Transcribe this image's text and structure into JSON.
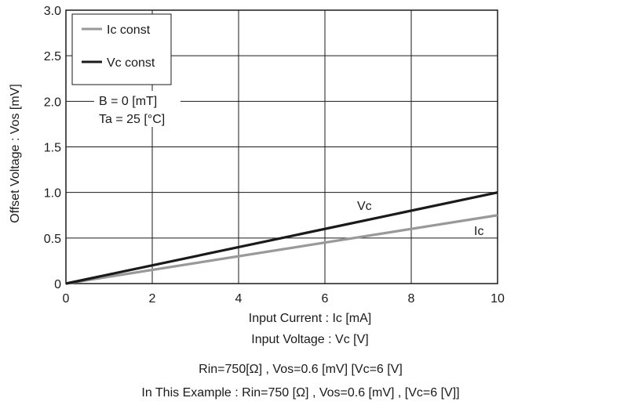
{
  "chart_data": {
    "type": "line",
    "xlabel_line1": "Input Current : Ic [mA]",
    "xlabel_line2": "Input Voltage : Vc [V]",
    "ylabel": "Offset Voltage : Vos [mV]",
    "xlim": [
      0,
      10
    ],
    "ylim": [
      0,
      3.0
    ],
    "xticks": [
      "0",
      "2",
      "4",
      "6",
      "8",
      "10"
    ],
    "yticks": [
      "0",
      "0.5",
      "1.0",
      "1.5",
      "2.0",
      "2.5",
      "3.0"
    ],
    "grid": true,
    "series": [
      {
        "name": "Ic const",
        "color": "#999999",
        "x": [
          0,
          10
        ],
        "y": [
          0,
          0.75
        ],
        "label": "Ic"
      },
      {
        "name": "Vc const",
        "color": "#1a1a1a",
        "x": [
          0,
          10
        ],
        "y": [
          0,
          1.0
        ],
        "label": "Vc"
      }
    ],
    "legend": {
      "position": "top-left",
      "entries": [
        "Ic const",
        "Vc const"
      ]
    },
    "annotation": {
      "line1": "B = 0 [mT]",
      "line2": "Ta = 25 [°C]"
    }
  },
  "notes": {
    "line1": "Rin=750[Ω] , Vos=0.6 [mV] [Vc=6 [V]",
    "line2": "In This Example : Rin=750 [Ω] , Vos=0.6 [mV] , [Vc=6 [V]]"
  }
}
